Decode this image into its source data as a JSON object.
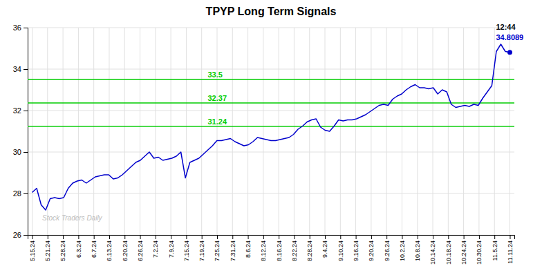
{
  "chart_data": {
    "type": "line",
    "title": "TPYP Long Term Signals",
    "color": "#0000cc",
    "grid": true,
    "xlim": [
      -1,
      107
    ],
    "xticks": [
      {
        "value": 0,
        "label": "5.15.24"
      },
      {
        "value": 3.4194,
        "label": "5.21.24"
      },
      {
        "value": 6.8387,
        "label": "5.28.24"
      },
      {
        "value": 10.2581,
        "label": "6.3.24"
      },
      {
        "value": 13.6774,
        "label": "6.7.24"
      },
      {
        "value": 17.0968,
        "label": "6.13.24"
      },
      {
        "value": 20.5161,
        "label": "6.20.24"
      },
      {
        "value": 23.9355,
        "label": "6.26.24"
      },
      {
        "value": 27.3548,
        "label": "7.2.24"
      },
      {
        "value": 30.7742,
        "label": "7.9.24"
      },
      {
        "value": 34.1935,
        "label": "7.15.24"
      },
      {
        "value": 37.6129,
        "label": "7.19.24"
      },
      {
        "value": 41.0323,
        "label": "7.25.24"
      },
      {
        "value": 44.4516,
        "label": "7.31.24"
      },
      {
        "value": 47.871,
        "label": "8.6.24"
      },
      {
        "value": 51.2903,
        "label": "8.12.24"
      },
      {
        "value": 54.7097,
        "label": "8.16.24"
      },
      {
        "value": 58.129,
        "label": "8.22.24"
      },
      {
        "value": 61.5484,
        "label": "8.28.24"
      },
      {
        "value": 64.9677,
        "label": "9.4.24"
      },
      {
        "value": 68.3871,
        "label": "9.10.24"
      },
      {
        "value": 71.8065,
        "label": "9.16.24"
      },
      {
        "value": 75.2258,
        "label": "9.20.24"
      },
      {
        "value": 78.6452,
        "label": "9.26.24"
      },
      {
        "value": 82.0645,
        "label": "10.2.24"
      },
      {
        "value": 85.4839,
        "label": "10.8.24"
      },
      {
        "value": 88.9032,
        "label": "10.14.24"
      },
      {
        "value": 92.3226,
        "label": "10.18.24"
      },
      {
        "value": 95.7419,
        "label": "10.24.24"
      },
      {
        "value": 99.1613,
        "label": "10.30.24"
      },
      {
        "value": 102.5806,
        "label": "11.5.24"
      },
      {
        "value": 106,
        "label": "11.11.24"
      }
    ],
    "ylim": [
      26,
      36
    ],
    "yticks": [
      26,
      28,
      30,
      32,
      34,
      36
    ],
    "values": [
      28.05,
      28.25,
      27.45,
      27.2,
      27.75,
      27.8,
      27.75,
      27.8,
      28.25,
      28.5,
      28.6,
      28.65,
      28.5,
      28.65,
      28.8,
      28.85,
      28.9,
      28.9,
      28.7,
      28.75,
      28.9,
      29.1,
      29.3,
      29.5,
      29.6,
      29.8,
      30.0,
      29.7,
      29.75,
      29.6,
      29.65,
      29.7,
      29.8,
      30.0,
      28.75,
      29.5,
      29.6,
      29.7,
      29.9,
      30.1,
      30.3,
      30.55,
      30.55,
      30.6,
      30.65,
      30.5,
      30.4,
      30.3,
      30.35,
      30.5,
      30.7,
      30.65,
      30.6,
      30.55,
      30.55,
      30.6,
      30.65,
      30.7,
      30.85,
      31.1,
      31.25,
      31.45,
      31.55,
      31.6,
      31.2,
      31.05,
      31.0,
      31.25,
      31.55,
      31.5,
      31.55,
      31.55,
      31.6,
      31.7,
      31.8,
      31.95,
      32.1,
      32.25,
      32.3,
      32.25,
      32.55,
      32.7,
      32.8,
      33.0,
      33.15,
      33.25,
      33.1,
      33.1,
      33.05,
      33.1,
      32.8,
      33.0,
      32.9,
      32.3,
      32.15,
      32.2,
      32.25,
      32.2,
      32.3,
      32.25,
      32.6,
      32.9,
      33.2,
      34.85,
      35.2,
      34.85,
      34.8089
    ],
    "hlines": [
      {
        "value": 31.24,
        "label": "31.24",
        "color": "#00cc00"
      },
      {
        "value": 32.37,
        "label": "32.37",
        "color": "#00cc00"
      },
      {
        "value": 33.5,
        "label": "33.5",
        "color": "#00cc00"
      }
    ],
    "annotations": [
      {
        "text": "12:44",
        "color": "#000000"
      },
      {
        "text": "34.8089",
        "color": "#0000cc"
      }
    ],
    "watermark": {
      "text": "Stock Traders Daily",
      "color": "#bbbbbb"
    }
  }
}
